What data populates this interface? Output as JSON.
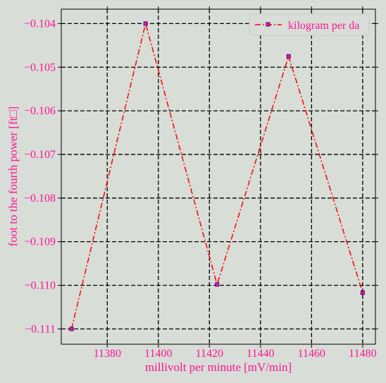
{
  "chart_data": {
    "type": "line",
    "xlabel": "millivolt per minute [mV/min]",
    "ylabel": "foot to the fourth power [ft□]",
    "xlim": [
      11362,
      11485
    ],
    "ylim": [
      -0.11135,
      -0.10367
    ],
    "xticks": [
      11380,
      11400,
      11420,
      11440,
      11460,
      11480
    ],
    "xtick_labels": [
      "11380",
      "11400",
      "11420",
      "11440",
      "11460",
      "11480"
    ],
    "yticks": [
      -0.104,
      -0.105,
      -0.106,
      -0.107,
      -0.108,
      -0.109,
      -0.11,
      -0.111
    ],
    "ytick_labels": [
      "−0.104",
      "−0.105",
      "−0.106",
      "−0.107",
      "−0.108",
      "−0.109",
      "−0.110",
      "−0.111"
    ],
    "grid": true,
    "legend_position": "top-right",
    "series": [
      {
        "name": "kilogram per da",
        "color": "#ff0000",
        "marker_face": "#ff1493",
        "marker_edge": "#4b0082",
        "linestyle": "dash-dot",
        "x": [
          11366,
          11395,
          11423,
          11451,
          11480
        ],
        "y": [
          -0.111,
          -0.104,
          -0.10998,
          -0.10475,
          -0.11017
        ]
      }
    ]
  }
}
